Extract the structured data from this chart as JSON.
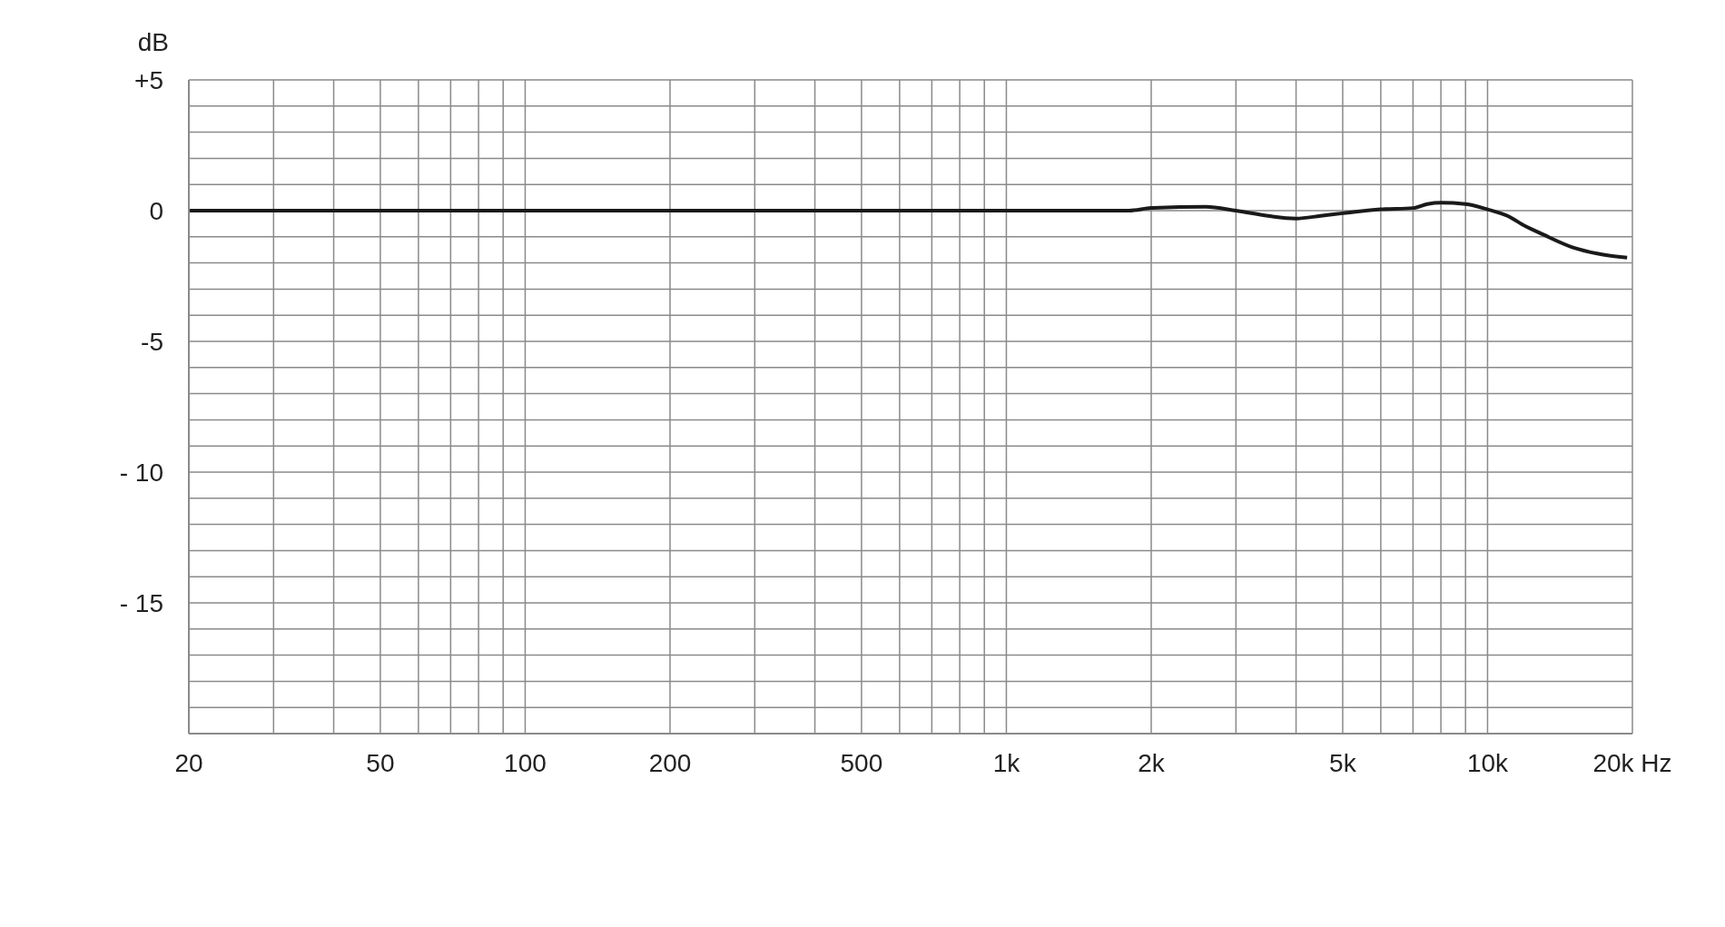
{
  "chart_data": {
    "type": "line",
    "ylabel": "dB",
    "log": "x",
    "grid": true,
    "xlim": [
      20,
      20000
    ],
    "ylim": [
      -20,
      5
    ],
    "xticks": [
      20,
      {
        "value": 30,
        "label": null
      },
      {
        "value": 40,
        "label": null
      },
      50,
      {
        "value": 60,
        "label": null
      },
      {
        "value": 70,
        "label": null
      },
      {
        "value": 80,
        "label": null
      },
      {
        "value": 90,
        "label": null
      },
      100,
      200,
      {
        "value": 300,
        "label": null
      },
      {
        "value": 400,
        "label": null
      },
      500,
      {
        "value": 600,
        "label": null
      },
      {
        "value": 700,
        "label": null
      },
      {
        "value": 800,
        "label": null
      },
      {
        "value": 900,
        "label": null
      },
      {
        "value": 1000,
        "label": "1k"
      },
      {
        "value": 2000,
        "label": "2k"
      },
      {
        "value": 3000,
        "label": null
      },
      {
        "value": 4000,
        "label": null
      },
      {
        "value": 5000,
        "label": "5k"
      },
      {
        "value": 6000,
        "label": null
      },
      {
        "value": 7000,
        "label": null
      },
      {
        "value": 8000,
        "label": null
      },
      {
        "value": 9000,
        "label": null
      },
      {
        "value": 10000,
        "label": "10k"
      },
      {
        "value": 20000,
        "label": "20k Hz"
      }
    ],
    "yticks": [
      {
        "value": -20,
        "label": null
      },
      {
        "value": -19,
        "label": null
      },
      {
        "value": -18,
        "label": null
      },
      {
        "value": -17,
        "label": null
      },
      {
        "value": -16,
        "label": null
      },
      {
        "value": -15,
        "label": "- 15"
      },
      {
        "value": -14,
        "label": null
      },
      {
        "value": -13,
        "label": null
      },
      {
        "value": -12,
        "label": null
      },
      {
        "value": -11,
        "label": null
      },
      {
        "value": -10,
        "label": "- 10"
      },
      {
        "value": -9,
        "label": null
      },
      {
        "value": -8,
        "label": null
      },
      {
        "value": -7,
        "label": null
      },
      {
        "value": -6,
        "label": null
      },
      -5,
      {
        "value": -4,
        "label": null
      },
      {
        "value": -3,
        "label": null
      },
      {
        "value": -2,
        "label": null
      },
      {
        "value": -1,
        "label": null
      },
      0,
      {
        "value": 1,
        "label": null
      },
      {
        "value": 2,
        "label": null
      },
      {
        "value": 3,
        "label": null
      },
      {
        "value": 4,
        "label": null
      },
      {
        "value": 5,
        "label": "+5"
      }
    ],
    "marker": "none",
    "line_style": "solid",
    "series": [
      {
        "color": "#1a1a1a",
        "x": [
          20,
          100,
          500,
          1000,
          1800,
          2000,
          2600,
          3000,
          3500,
          4000,
          4500,
          5000,
          6000,
          7000,
          7500,
          8000,
          9000,
          10000,
          11000,
          12000,
          13000,
          15000,
          17000,
          19500
        ],
        "values": [
          0,
          0,
          0,
          0,
          0,
          0.1,
          0.15,
          0,
          -0.2,
          -0.3,
          -0.2,
          -0.1,
          0.05,
          0.1,
          0.25,
          0.3,
          0.25,
          0.05,
          -0.2,
          -0.6,
          -0.9,
          -1.4,
          -1.65,
          -1.8
        ]
      }
    ]
  }
}
